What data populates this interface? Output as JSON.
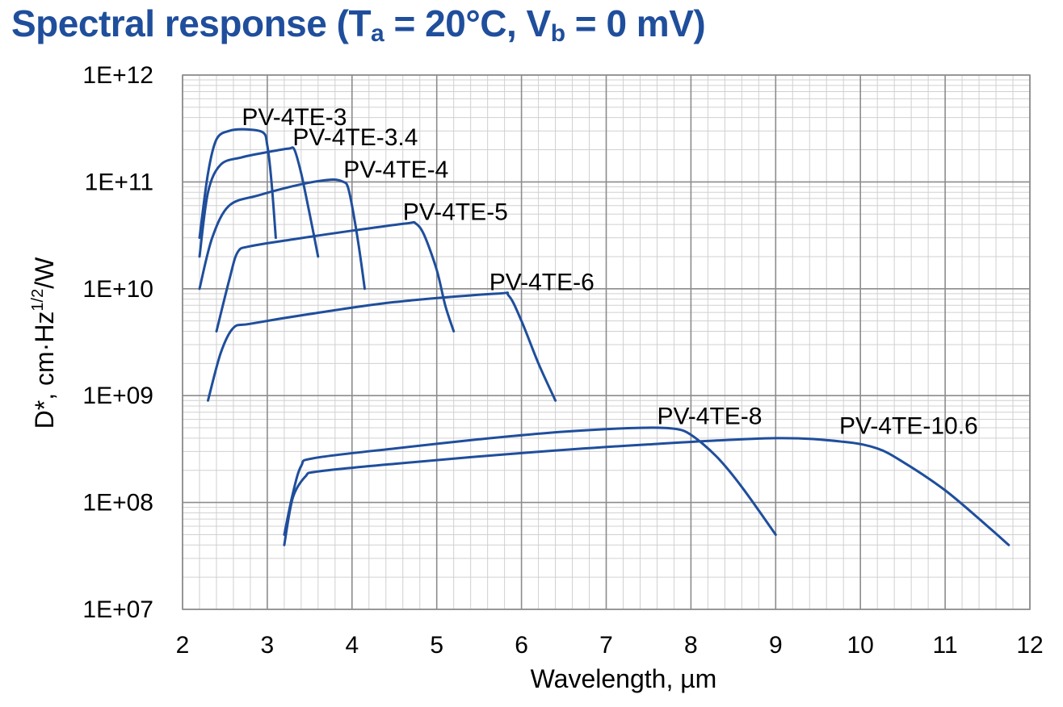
{
  "chart_data": {
    "type": "line",
    "title": {
      "prefix": "Spectral response (T",
      "sub1": "a",
      "mid": " = 20°C, V",
      "sub2": "b",
      "suffix": " = 0 mV)"
    },
    "xlabel": "Wavelength, µm",
    "ylabel": {
      "main": "D*, cm·Hz",
      "sup": "1/2",
      "tail": "/W"
    },
    "xlim": [
      2,
      12
    ],
    "ylim": [
      10000000.0,
      1000000000000.0
    ],
    "yscale": "log",
    "grid": true,
    "x_ticks": [
      2,
      3,
      4,
      5,
      6,
      7,
      8,
      9,
      10,
      11,
      12
    ],
    "y_ticks": [
      {
        "value": 1000000000000.0,
        "label": "1E+12"
      },
      {
        "value": 100000000000.0,
        "label": "1E+11"
      },
      {
        "value": 10000000000.0,
        "label": "1E+10"
      },
      {
        "value": 1000000000.0,
        "label": "1E+09"
      },
      {
        "value": 100000000.0,
        "label": "1E+08"
      },
      {
        "value": 10000000.0,
        "label": "1E+07"
      }
    ],
    "series": [
      {
        "name": "PV-4TE-3",
        "color": "#1f4e9c",
        "points": [
          [
            2.2,
            30000000000.0
          ],
          [
            2.3,
            120000000000.0
          ],
          [
            2.4,
            250000000000.0
          ],
          [
            2.55,
            300000000000.0
          ],
          [
            2.75,
            310000000000.0
          ],
          [
            2.95,
            290000000000.0
          ],
          [
            3.0,
            220000000000.0
          ],
          [
            3.05,
            100000000000.0
          ],
          [
            3.1,
            30000000000.0
          ]
        ]
      },
      {
        "name": "PV-4TE-3.4",
        "color": "#1f4e9c",
        "points": [
          [
            2.2,
            20000000000.0
          ],
          [
            2.3,
            80000000000.0
          ],
          [
            2.45,
            145000000000.0
          ],
          [
            2.7,
            170000000000.0
          ],
          [
            3.0,
            190000000000.0
          ],
          [
            3.25,
            205000000000.0
          ],
          [
            3.32,
            200000000000.0
          ],
          [
            3.4,
            120000000000.0
          ],
          [
            3.5,
            50000000000.0
          ],
          [
            3.6,
            20000000000.0
          ]
        ]
      },
      {
        "name": "PV-4TE-4",
        "color": "#1f4e9c",
        "points": [
          [
            2.2,
            10000000000.0
          ],
          [
            2.35,
            30000000000.0
          ],
          [
            2.55,
            60000000000.0
          ],
          [
            2.9,
            75000000000.0
          ],
          [
            3.4,
            95000000000.0
          ],
          [
            3.75,
            105000000000.0
          ],
          [
            3.9,
            100000000000.0
          ],
          [
            3.95,
            90000000000.0
          ],
          [
            4.0,
            60000000000.0
          ],
          [
            4.08,
            25000000000.0
          ],
          [
            4.15,
            10000000000.0
          ]
        ]
      },
      {
        "name": "PV-4TE-5",
        "color": "#1f4e9c",
        "points": [
          [
            2.4,
            4000000000.0
          ],
          [
            2.55,
            12000000000.0
          ],
          [
            2.65,
            22000000000.0
          ],
          [
            2.8,
            25000000000.0
          ],
          [
            3.3,
            29000000000.0
          ],
          [
            4.0,
            35000000000.0
          ],
          [
            4.65,
            41000000000.0
          ],
          [
            4.75,
            41000000000.0
          ],
          [
            4.85,
            32000000000.0
          ],
          [
            5.0,
            15000000000.0
          ],
          [
            5.1,
            7000000000.0
          ],
          [
            5.2,
            4000000000.0
          ]
        ]
      },
      {
        "name": "PV-4TE-6",
        "color": "#1f4e9c",
        "points": [
          [
            2.3,
            900000000.0
          ],
          [
            2.45,
            2500000000.0
          ],
          [
            2.6,
            4300000000.0
          ],
          [
            2.8,
            4700000000.0
          ],
          [
            3.5,
            5800000000.0
          ],
          [
            4.5,
            7500000000.0
          ],
          [
            5.7,
            9000000000.0
          ],
          [
            5.85,
            8600000000.0
          ],
          [
            6.0,
            5000000000.0
          ],
          [
            6.2,
            2000000000.0
          ],
          [
            6.4,
            900000000.0
          ]
        ]
      },
      {
        "name": "PV-4TE-8",
        "color": "#1f4e9c",
        "points": [
          [
            3.2,
            50000000.0
          ],
          [
            3.3,
            120000000.0
          ],
          [
            3.4,
            220000000.0
          ],
          [
            3.55,
            260000000.0
          ],
          [
            4.5,
            320000000.0
          ],
          [
            5.5,
            390000000.0
          ],
          [
            6.5,
            460000000.0
          ],
          [
            7.4,
            500000000.0
          ],
          [
            7.8,
            490000000.0
          ],
          [
            8.0,
            430000000.0
          ],
          [
            8.3,
            270000000.0
          ],
          [
            8.6,
            140000000.0
          ],
          [
            9.0,
            50000000.0
          ]
        ]
      },
      {
        "name": "PV-4TE-10.6",
        "color": "#1f4e9c",
        "points": [
          [
            3.2,
            40000000.0
          ],
          [
            3.3,
            110000000.0
          ],
          [
            3.45,
            175000000.0
          ],
          [
            3.6,
            195000000.0
          ],
          [
            4.5,
            230000000.0
          ],
          [
            6.0,
            290000000.0
          ],
          [
            7.5,
            350000000.0
          ],
          [
            9.0,
            400000000.0
          ],
          [
            9.8,
            370000000.0
          ],
          [
            10.2,
            320000000.0
          ],
          [
            10.5,
            240000000.0
          ],
          [
            11.0,
            130000000.0
          ],
          [
            11.5,
            60000000.0
          ],
          [
            11.75,
            40000000.0
          ]
        ]
      }
    ],
    "annotations": [
      {
        "series": "PV-4TE-3",
        "text": "PV-4TE-3",
        "x": 2.7,
        "y": 340000000000.0
      },
      {
        "series": "PV-4TE-3.4",
        "text": "PV-4TE-3.4",
        "x": 3.3,
        "y": 220000000000.0
      },
      {
        "series": "PV-4TE-4",
        "text": "PV-4TE-4",
        "x": 3.9,
        "y": 110000000000.0
      },
      {
        "series": "PV-4TE-5",
        "text": "PV-4TE-5",
        "x": 4.6,
        "y": 44000000000.0
      },
      {
        "series": "PV-4TE-6",
        "text": "PV-4TE-6",
        "x": 5.62,
        "y": 9700000000.0
      },
      {
        "series": "PV-4TE-8",
        "text": "PV-4TE-8",
        "x": 7.6,
        "y": 540000000.0
      },
      {
        "series": "PV-4TE-10.6",
        "text": "PV-4TE-10.6",
        "x": 9.75,
        "y": 440000000.0
      }
    ]
  }
}
